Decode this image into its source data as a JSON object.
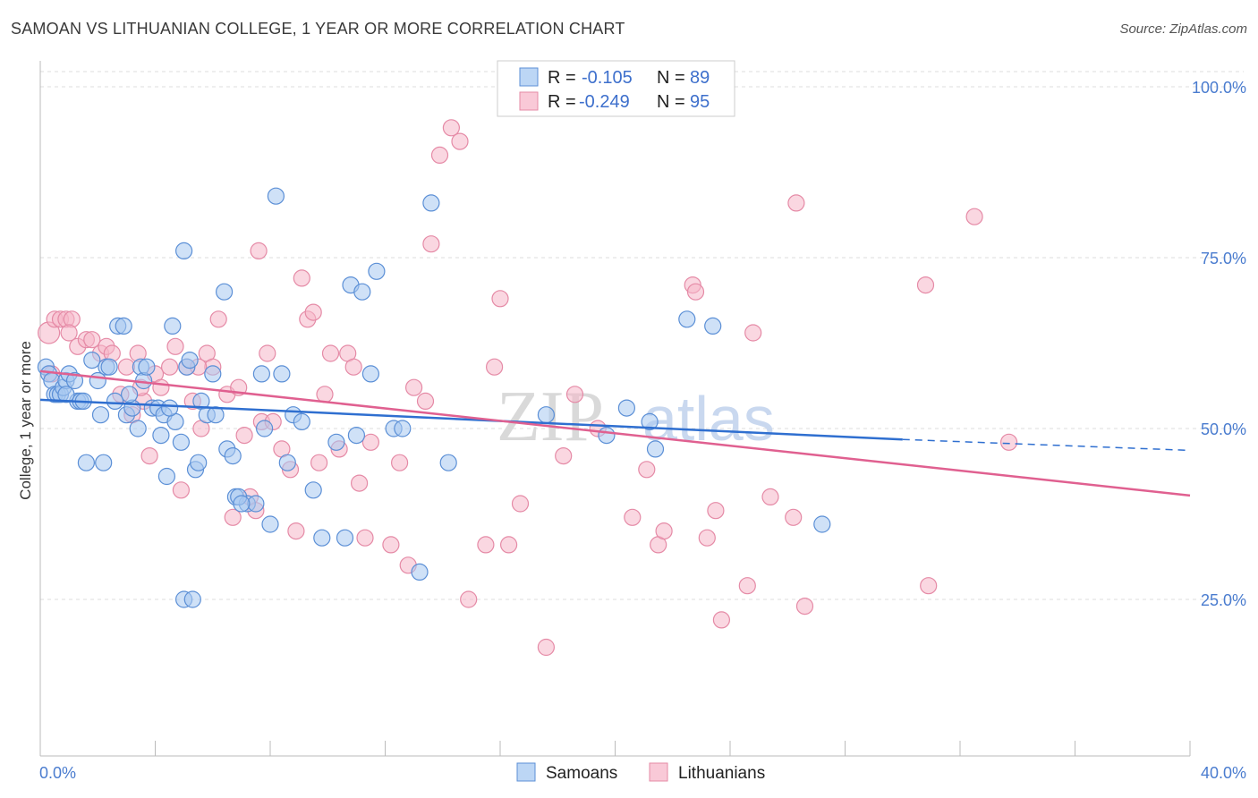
{
  "title": "SAMOAN VS LITHUANIAN COLLEGE, 1 YEAR OR MORE CORRELATION CHART",
  "source": "Source: ZipAtlas.com",
  "watermark": {
    "part1": "ZIP",
    "part2": "atlas"
  },
  "colors": {
    "samoans_fill": "#a8c8f0",
    "samoans_stroke": "#5b8fd6",
    "samoans_line": "#2f6fd0",
    "lithuanians_fill": "#f6b6c8",
    "lithuanians_stroke": "#e58aa6",
    "lithuanians_line": "#e06090",
    "tick_label": "#4a7ccf"
  },
  "legend": {
    "r_label": "R =",
    "n_label": "N =",
    "samoans": {
      "r": "-0.105",
      "n": "89"
    },
    "lithuanians": {
      "r": "-0.249",
      "n": "95"
    }
  },
  "chart_data": {
    "type": "scatter",
    "xlabel": "",
    "ylabel": "College, 1 year or more",
    "xlim": [
      0,
      40
    ],
    "ylim": [
      0,
      105
    ],
    "x_tick_labels": [
      {
        "v": 0,
        "t": "0.0%"
      },
      {
        "v": 40,
        "t": "40.0%"
      }
    ],
    "y_tick_labels": [
      {
        "v": 100,
        "t": "100.0%"
      },
      {
        "v": 75,
        "t": "75.0%"
      },
      {
        "v": 50,
        "t": "50.0%"
      },
      {
        "v": 25,
        "t": "25.0%"
      }
    ],
    "grid": true,
    "legend_position": "top-center",
    "series": [
      {
        "name": "Samoans",
        "trend": {
          "x0": 0,
          "y0": 54.2,
          "x1": 30,
          "y1": 48.4,
          "dashed_to": 40,
          "dashed_y": 46.8
        },
        "points": [
          [
            0.2,
            59
          ],
          [
            0.3,
            58
          ],
          [
            0.4,
            57
          ],
          [
            0.5,
            55
          ],
          [
            0.6,
            55
          ],
          [
            0.7,
            55
          ],
          [
            0.8,
            56
          ],
          [
            0.9,
            57
          ],
          [
            1.0,
            58
          ],
          [
            1.2,
            57
          ],
          [
            1.3,
            54
          ],
          [
            1.4,
            54
          ],
          [
            1.5,
            54
          ],
          [
            1.8,
            60
          ],
          [
            2.0,
            57
          ],
          [
            2.1,
            52
          ],
          [
            2.3,
            59
          ],
          [
            2.4,
            59
          ],
          [
            2.7,
            65
          ],
          [
            2.9,
            65
          ],
          [
            3.0,
            52
          ],
          [
            3.2,
            53
          ],
          [
            3.4,
            50
          ],
          [
            3.5,
            59
          ],
          [
            3.6,
            57
          ],
          [
            3.7,
            59
          ],
          [
            3.9,
            53
          ],
          [
            4.1,
            53
          ],
          [
            4.2,
            49
          ],
          [
            4.3,
            52
          ],
          [
            4.4,
            43
          ],
          [
            4.6,
            65
          ],
          [
            4.7,
            51
          ],
          [
            4.9,
            48
          ],
          [
            5.0,
            76
          ],
          [
            5.1,
            59
          ],
          [
            5.2,
            60
          ],
          [
            5.4,
            44
          ],
          [
            5.5,
            45
          ],
          [
            5.6,
            54
          ],
          [
            5.8,
            52
          ],
          [
            6.0,
            58
          ],
          [
            6.1,
            52
          ],
          [
            6.4,
            70
          ],
          [
            6.5,
            47
          ],
          [
            6.7,
            46
          ],
          [
            6.8,
            40
          ],
          [
            7.2,
            39
          ],
          [
            7.5,
            39
          ],
          [
            7.7,
            58
          ],
          [
            7.8,
            50
          ],
          [
            8.0,
            36
          ],
          [
            8.2,
            84
          ],
          [
            8.4,
            58
          ],
          [
            8.6,
            45
          ],
          [
            8.8,
            52
          ],
          [
            9.1,
            51
          ],
          [
            9.5,
            41
          ],
          [
            9.8,
            34
          ],
          [
            10.3,
            48
          ],
          [
            10.6,
            34
          ],
          [
            10.8,
            71
          ],
          [
            11.0,
            49
          ],
          [
            11.2,
            70
          ],
          [
            11.5,
            58
          ],
          [
            11.7,
            73
          ],
          [
            12.3,
            50
          ],
          [
            12.6,
            50
          ],
          [
            13.2,
            29
          ],
          [
            13.6,
            83
          ],
          [
            14.2,
            45
          ],
          [
            17.6,
            52
          ],
          [
            19.7,
            49
          ],
          [
            20.4,
            53
          ],
          [
            21.2,
            51
          ],
          [
            21.4,
            47
          ],
          [
            22.5,
            66
          ],
          [
            23.4,
            65
          ],
          [
            27.2,
            36
          ],
          [
            2.2,
            45
          ],
          [
            1.6,
            45
          ],
          [
            0.9,
            55
          ],
          [
            3.1,
            55
          ],
          [
            5.0,
            25
          ],
          [
            5.3,
            25
          ],
          [
            6.9,
            40
          ],
          [
            7.0,
            39
          ],
          [
            4.5,
            53
          ],
          [
            2.6,
            54
          ]
        ]
      },
      {
        "name": "Lithuanians",
        "trend": {
          "x0": 0,
          "y0": 58.4,
          "x1": 40,
          "y1": 40.2
        },
        "points": [
          [
            0.3,
            64
          ],
          [
            0.5,
            66
          ],
          [
            0.7,
            66
          ],
          [
            0.9,
            66
          ],
          [
            1.1,
            66
          ],
          [
            1.3,
            62
          ],
          [
            1.6,
            63
          ],
          [
            1.8,
            63
          ],
          [
            2.1,
            61
          ],
          [
            2.3,
            62
          ],
          [
            2.5,
            61
          ],
          [
            2.8,
            55
          ],
          [
            3.0,
            59
          ],
          [
            3.2,
            52
          ],
          [
            3.4,
            61
          ],
          [
            3.6,
            54
          ],
          [
            3.8,
            46
          ],
          [
            4.0,
            58
          ],
          [
            4.2,
            56
          ],
          [
            4.5,
            59
          ],
          [
            4.7,
            62
          ],
          [
            4.9,
            41
          ],
          [
            5.1,
            59
          ],
          [
            5.3,
            54
          ],
          [
            5.6,
            50
          ],
          [
            5.8,
            61
          ],
          [
            6.0,
            59
          ],
          [
            6.2,
            66
          ],
          [
            6.5,
            55
          ],
          [
            6.7,
            37
          ],
          [
            6.9,
            56
          ],
          [
            7.1,
            49
          ],
          [
            7.3,
            40
          ],
          [
            7.5,
            38
          ],
          [
            7.7,
            51
          ],
          [
            7.9,
            61
          ],
          [
            7.6,
            76
          ],
          [
            8.1,
            51
          ],
          [
            8.4,
            47
          ],
          [
            8.7,
            44
          ],
          [
            8.9,
            35
          ],
          [
            9.1,
            72
          ],
          [
            9.3,
            66
          ],
          [
            9.5,
            67
          ],
          [
            9.7,
            45
          ],
          [
            9.9,
            55
          ],
          [
            10.1,
            61
          ],
          [
            10.4,
            47
          ],
          [
            10.7,
            61
          ],
          [
            10.9,
            59
          ],
          [
            11.1,
            42
          ],
          [
            11.3,
            34
          ],
          [
            11.5,
            48
          ],
          [
            12.2,
            33
          ],
          [
            12.5,
            45
          ],
          [
            12.8,
            30
          ],
          [
            13.0,
            56
          ],
          [
            13.4,
            54
          ],
          [
            13.6,
            77
          ],
          [
            13.9,
            90
          ],
          [
            14.3,
            94
          ],
          [
            14.6,
            92
          ],
          [
            14.9,
            25
          ],
          [
            15.5,
            33
          ],
          [
            15.8,
            59
          ],
          [
            16.0,
            69
          ],
          [
            16.3,
            33
          ],
          [
            16.7,
            39
          ],
          [
            17.6,
            18
          ],
          [
            18.2,
            46
          ],
          [
            18.6,
            55
          ],
          [
            19.4,
            50
          ],
          [
            20.6,
            37
          ],
          [
            21.1,
            44
          ],
          [
            21.5,
            33
          ],
          [
            21.7,
            35
          ],
          [
            22.7,
            71
          ],
          [
            22.8,
            70
          ],
          [
            23.2,
            34
          ],
          [
            23.5,
            38
          ],
          [
            23.7,
            22
          ],
          [
            24.6,
            27
          ],
          [
            24.8,
            64
          ],
          [
            25.4,
            40
          ],
          [
            26.2,
            37
          ],
          [
            26.3,
            83
          ],
          [
            26.6,
            24
          ],
          [
            30.8,
            71
          ],
          [
            30.9,
            27
          ],
          [
            32.5,
            81
          ],
          [
            33.7,
            48
          ],
          [
            5.5,
            59
          ],
          [
            3.5,
            56
          ],
          [
            1.0,
            64
          ],
          [
            0.4,
            58
          ]
        ]
      }
    ]
  }
}
